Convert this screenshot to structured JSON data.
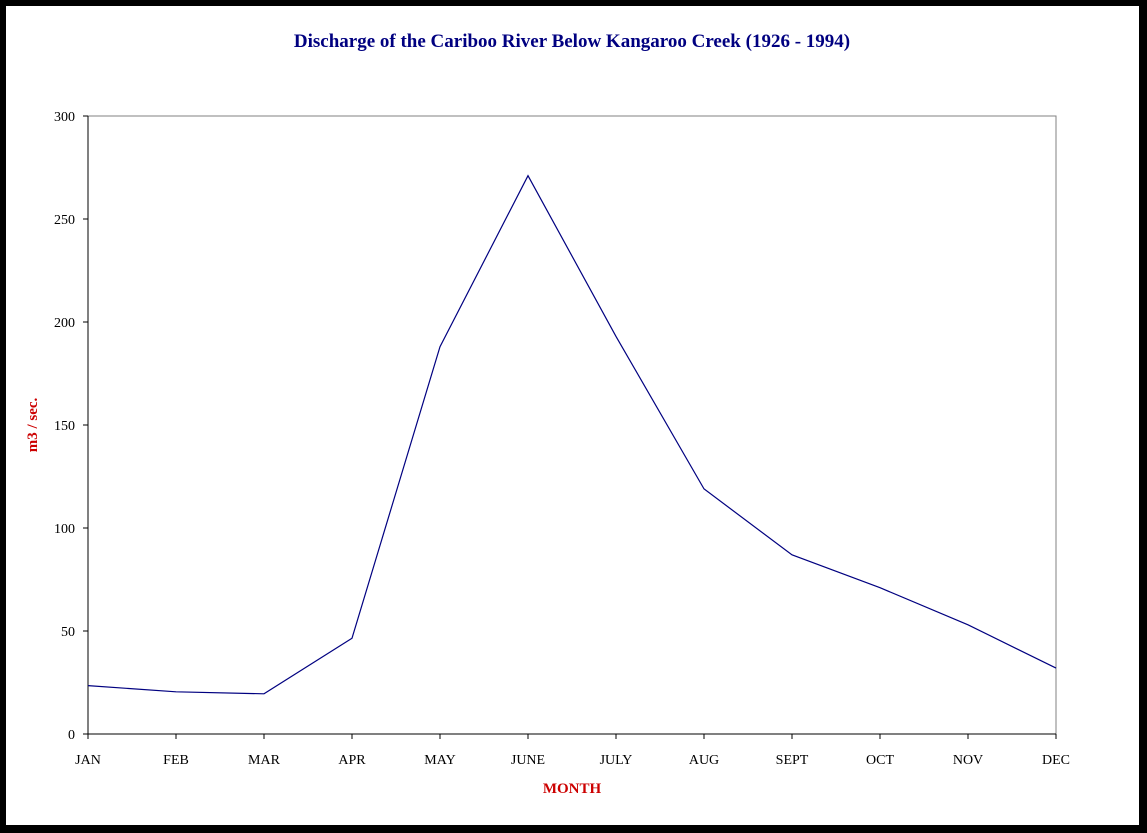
{
  "chart_data": {
    "type": "line",
    "title": "Discharge of the Cariboo River Below Kangaroo Creek (1926 - 1994)",
    "xlabel": "MONTH",
    "ylabel": "m3 / sec.",
    "categories": [
      "JAN",
      "FEB",
      "MAR",
      "APR",
      "MAY",
      "JUNE",
      "JULY",
      "AUG",
      "SEPT",
      "OCT",
      "NOV",
      "DEC"
    ],
    "series": [
      {
        "values": [
          23.5,
          20.5,
          19.5,
          46.5,
          188,
          271,
          193,
          119,
          87,
          71,
          53,
          32
        ],
        "color": "#000080"
      }
    ],
    "ylim": [
      0,
      300
    ],
    "yticks": [
      0,
      50,
      100,
      150,
      200,
      250,
      300
    ],
    "grid": false,
    "legend": "none"
  },
  "colors": {
    "title": "#000080",
    "xlabel": "#cc0000",
    "ylabel": "#cc0000",
    "line": "#000080",
    "plot_border": "#808080",
    "background": "#000000"
  }
}
